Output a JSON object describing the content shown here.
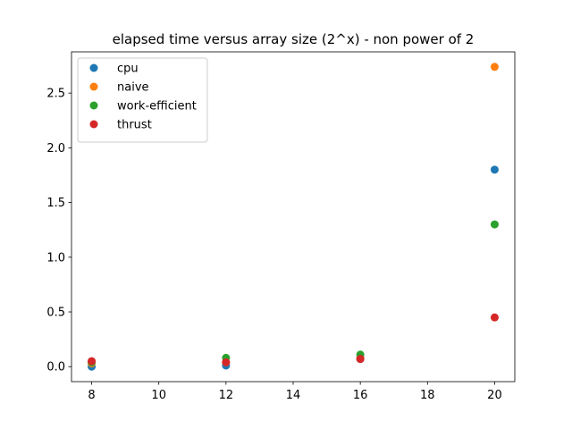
{
  "chart_data": {
    "type": "scatter",
    "title": "elapsed time versus array size (2^x) - non power of 2",
    "xlabel": "",
    "ylabel": "",
    "xlim": [
      7.4,
      20.6
    ],
    "ylim": [
      -0.137,
      2.877
    ],
    "xticks": [
      8,
      10,
      12,
      14,
      16,
      18,
      20
    ],
    "yticks": [
      0.0,
      0.5,
      1.0,
      1.5,
      2.0,
      2.5
    ],
    "xtick_labels": [
      "8",
      "10",
      "12",
      "14",
      "16",
      "18",
      "20"
    ],
    "ytick_labels": [
      "0.0",
      "0.5",
      "1.0",
      "1.5",
      "2.0",
      "2.5"
    ],
    "grid": false,
    "legend_position": "top-left",
    "series": [
      {
        "name": "cpu",
        "color": "#1f77b4",
        "x": [
          8,
          12,
          16,
          20
        ],
        "y": [
          0.0,
          0.01,
          0.07,
          1.8
        ]
      },
      {
        "name": "naive",
        "color": "#ff7f0e",
        "x": [
          8,
          12,
          16,
          20
        ],
        "y": [
          0.03,
          0.04,
          0.08,
          2.74
        ]
      },
      {
        "name": "work-efficient",
        "color": "#2ca02c",
        "x": [
          8,
          12,
          16,
          20
        ],
        "y": [
          0.04,
          0.08,
          0.11,
          1.3
        ]
      },
      {
        "name": "thrust",
        "color": "#d62728",
        "x": [
          8,
          12,
          16,
          20
        ],
        "y": [
          0.05,
          0.04,
          0.07,
          0.45
        ]
      }
    ]
  }
}
